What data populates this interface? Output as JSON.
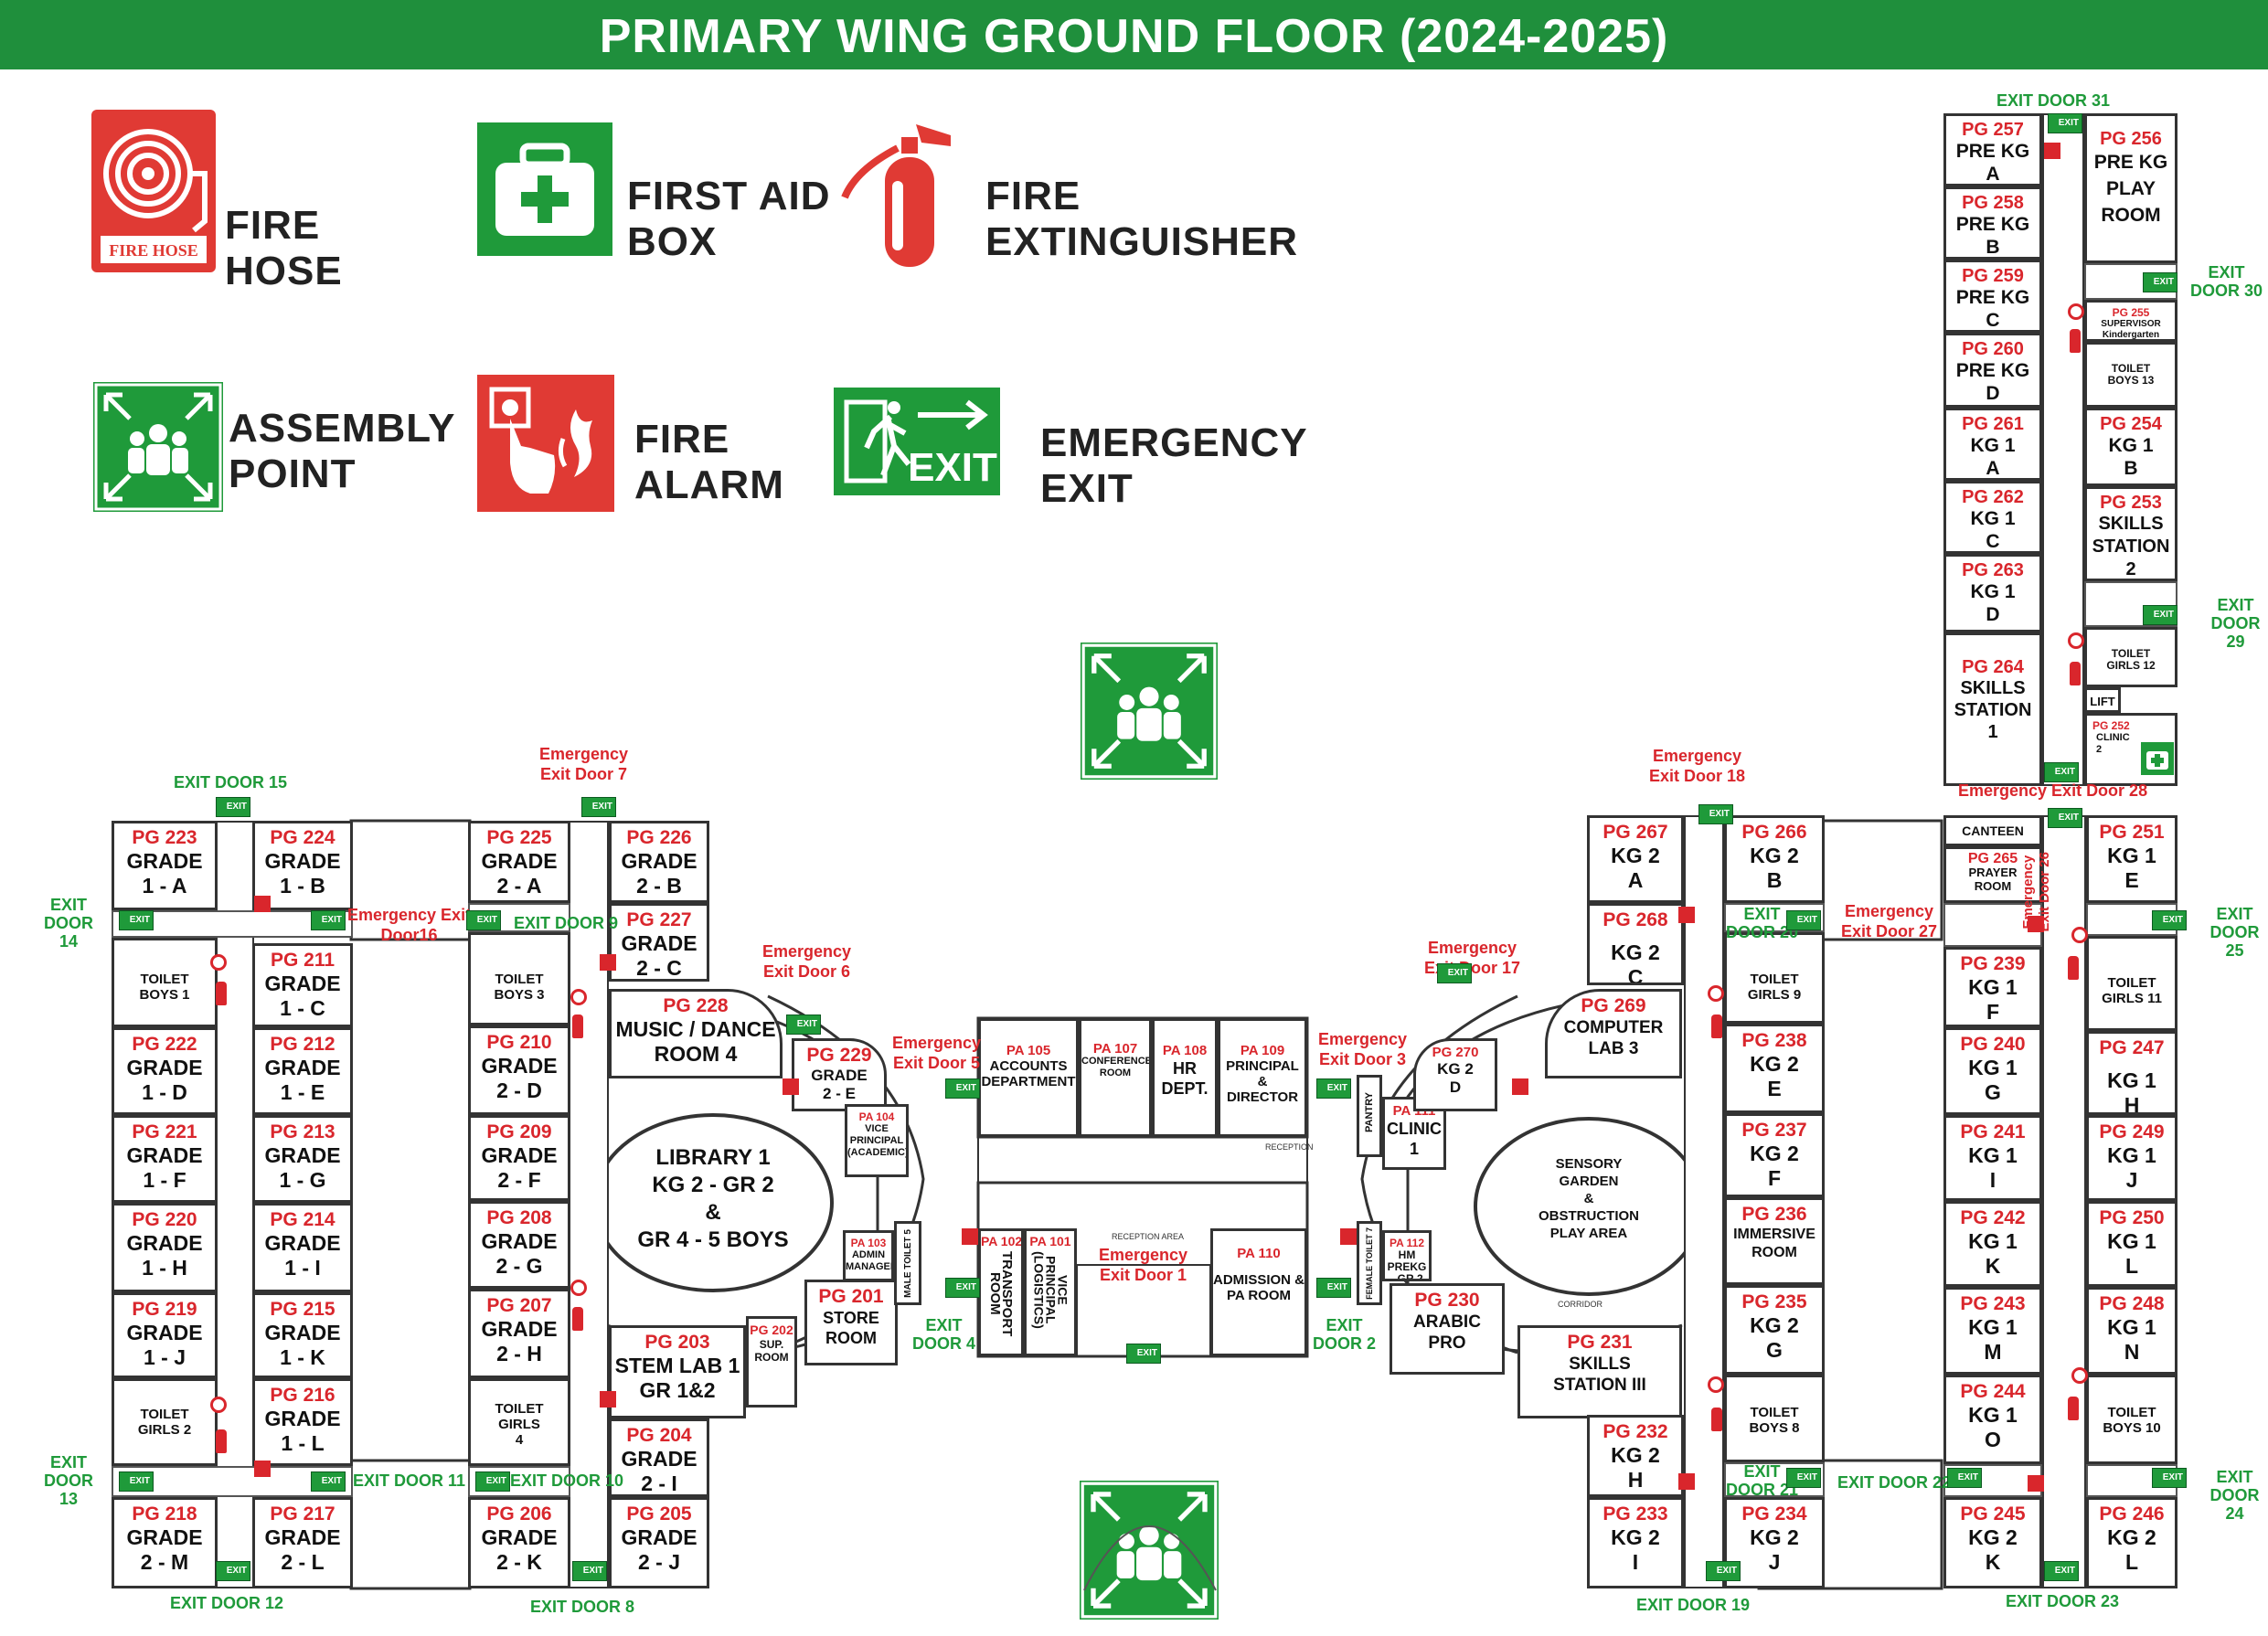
{
  "title": "PRIMARY WING GROUND FLOOR (2024-2025)",
  "colors": {
    "header_green": "#1f8f3c",
    "exit_green": "#1f9a3a",
    "safety_red": "#d9262c"
  },
  "legend": {
    "fire_hose": {
      "icon_text": "FIRE HOSE",
      "line1": "FIRE",
      "line2": "HOSE"
    },
    "first_aid": {
      "line1": "FIRST AID",
      "line2": "BOX"
    },
    "extinguisher": {
      "line1": "FIRE",
      "line2": "EXTINGUISHER"
    },
    "assembly": {
      "line1": "ASSEMBLY",
      "line2": "POINT"
    },
    "alarm": {
      "line1": "FIRE",
      "line2": "ALARM"
    },
    "emergency_exit": {
      "icon_text": "EXIT",
      "line1": "EMERGENCY",
      "line2": "EXIT"
    }
  },
  "exit_sign_text": "EXIT",
  "rooms": {
    "pg223": {
      "code": "PG 223",
      "name": "GRADE\n1 - A"
    },
    "pg224": {
      "code": "PG 224",
      "name": "GRADE\n1 - B"
    },
    "toilet_boys1": {
      "code": "",
      "name": "TOILET\nBOYS 1"
    },
    "pg211": {
      "code": "PG 211",
      "name": "GRADE\n1 - C"
    },
    "pg222": {
      "code": "PG 222",
      "name": "GRADE\n1 - D"
    },
    "pg212": {
      "code": "PG 212",
      "name": "GRADE\n1 - E"
    },
    "pg221": {
      "code": "PG 221",
      "name": "GRADE\n1 - F"
    },
    "pg213": {
      "code": "PG 213",
      "name": "GRADE\n1 - G"
    },
    "pg220": {
      "code": "PG 220",
      "name": "GRADE\n1 - H"
    },
    "pg214": {
      "code": "PG 214",
      "name": "GRADE\n1 - I"
    },
    "pg219": {
      "code": "PG 219",
      "name": "GRADE\n1 - J"
    },
    "pg215": {
      "code": "PG 215",
      "name": "GRADE\n1 - K"
    },
    "toilet_girls2": {
      "code": "",
      "name": "TOILET\nGIRLS 2"
    },
    "pg216": {
      "code": "PG 216",
      "name": "GRADE\n1 - L"
    },
    "pg218": {
      "code": "PG 218",
      "name": "GRADE\n2 - M"
    },
    "pg217": {
      "code": "PG 217",
      "name": "GRADE\n2 - L"
    },
    "pg225": {
      "code": "PG 225",
      "name": "GRADE\n2 - A"
    },
    "pg226": {
      "code": "PG 226",
      "name": "GRADE\n2 - B"
    },
    "pg227": {
      "code": "PG 227",
      "name": "GRADE\n2 - C"
    },
    "toilet_boys3": {
      "code": "",
      "name": "TOILET\nBOYS 3"
    },
    "pg228": {
      "code": "PG 228",
      "name": "MUSIC / DANCE\nROOM 4"
    },
    "pg210": {
      "code": "PG 210",
      "name": "GRADE\n2 - D"
    },
    "pg209": {
      "code": "PG 209",
      "name": "GRADE\n2 - F"
    },
    "pg208": {
      "code": "PG 208",
      "name": "GRADE\n2 - G"
    },
    "pg207": {
      "code": "PG 207",
      "name": "GRADE\n2 - H"
    },
    "toilet_girls4": {
      "code": "",
      "name": "TOILET\nGIRLS\n4"
    },
    "pg203": {
      "code": "PG 203",
      "name": "STEM LAB 1\nGR 1&2"
    },
    "pg202": {
      "code": "PG 202",
      "name": "SUP. ROOM"
    },
    "pg204": {
      "code": "PG 204",
      "name": "GRADE\n2 - I"
    },
    "pg206": {
      "code": "PG 206",
      "name": "GRADE\n2 - K"
    },
    "pg205": {
      "code": "PG 205",
      "name": "GRADE\n2 - J"
    },
    "pg229": {
      "code": "PG 229",
      "name": "GRADE\n2 - E"
    },
    "pa104": {
      "code": "PA 104",
      "name": "VICE\nPRINCIPAL\n(ACADEMIC)"
    },
    "pg201": {
      "code": "PG 201",
      "name": "STORE\nROOM"
    },
    "pa103": {
      "code": "PA 103",
      "name": "ADMIN\nMANAGER"
    },
    "male_toilet5": {
      "code": "",
      "name": "MALE TOILET 5"
    },
    "pa105": {
      "code": "PA 105",
      "name": "ACCOUNTS\nDEPARTMENT"
    },
    "pa107": {
      "code": "PA 107",
      "name": "CONFERENCE\nROOM"
    },
    "pa108": {
      "code": "PA 108",
      "name": "HR\nDEPT."
    },
    "pa109": {
      "code": "PA 109",
      "name": "PRINCIPAL &\nDIRECTOR"
    },
    "pa102": {
      "code": "PA 102",
      "name": "TRANSPORT\nROOM"
    },
    "pa101": {
      "code": "PA 101",
      "name": "VICE\nPRINCIPAL\n(LOGISTICS)"
    },
    "pa110": {
      "code": "PA 110",
      "name": "ADMISSION &\nPA ROOM"
    },
    "pantry": {
      "code": "",
      "name": "PANTRY"
    },
    "pa111": {
      "code": "PA 111",
      "name": "CLINIC\n1"
    },
    "pa112": {
      "code": "PA 112",
      "name": "HM\nPREKG - GR 2"
    },
    "female_toilet7": {
      "code": "",
      "name": "FEMALE TOILET 7"
    },
    "pg270": {
      "code": "PG 270",
      "name": "KG 2\nD"
    },
    "pg269": {
      "code": "PG 269",
      "name": "COMPUTER\nLAB 3"
    },
    "pg230": {
      "code": "PG 230",
      "name": "ARABIC\nPRO"
    },
    "pg231": {
      "code": "PG 231",
      "name": "SKILLS\nSTATION III"
    },
    "pg267": {
      "code": "PG 267",
      "name": "KG 2\nA"
    },
    "pg266": {
      "code": "PG 266",
      "name": "KG 2\nB"
    },
    "pg268": {
      "code": "PG 268",
      "name": "KG 2\nC"
    },
    "toilet_girls9": {
      "code": "",
      "name": "TOILET\nGIRLS 9"
    },
    "pg238": {
      "code": "PG 238",
      "name": "KG 2\nE"
    },
    "pg237": {
      "code": "PG 237",
      "name": "KG 2\nF"
    },
    "pg236": {
      "code": "PG 236",
      "name": "IMMERSIVE\nROOM"
    },
    "pg235": {
      "code": "PG 235",
      "name": "KG 2\nG"
    },
    "toilet_boys8": {
      "code": "",
      "name": "TOILET\nBOYS 8"
    },
    "pg232": {
      "code": "PG 232",
      "name": "KG 2\nH"
    },
    "pg233": {
      "code": "PG 233",
      "name": "KG 2\nI"
    },
    "pg234": {
      "code": "PG 234",
      "name": "KG 2\nJ"
    },
    "canteen": {
      "code": "",
      "name": "CANTEEN"
    },
    "pg265": {
      "code": "PG 265",
      "name": "PRAYER\nROOM"
    },
    "pg251": {
      "code": "PG 251",
      "name": "KG 1\nE"
    },
    "pg239": {
      "code": "PG 239",
      "name": "KG 1\nF"
    },
    "toilet_girls11": {
      "code": "",
      "name": "TOILET\nGIRLS 11"
    },
    "pg240": {
      "code": "PG 240",
      "name": "KG 1\nG"
    },
    "pg247": {
      "code": "PG 247",
      "name": "KG 1\nH"
    },
    "pg241": {
      "code": "PG 241",
      "name": "KG 1\nI"
    },
    "pg249": {
      "code": "PG 249",
      "name": "KG 1\nJ"
    },
    "pg242": {
      "code": "PG 242",
      "name": "KG 1\nK"
    },
    "pg250": {
      "code": "PG 250",
      "name": "KG 1\nL"
    },
    "pg243": {
      "code": "PG 243",
      "name": "KG 1\nM"
    },
    "pg248": {
      "code": "PG 248",
      "name": "KG 1\nN"
    },
    "pg244": {
      "code": "PG 244",
      "name": "KG 1\nO"
    },
    "toilet_boys10": {
      "code": "",
      "name": "TOILET\nBOYS 10"
    },
    "pg245": {
      "code": "PG 245",
      "name": "KG 2\nK"
    },
    "pg246": {
      "code": "PG 246",
      "name": "KG 2\nL"
    },
    "pg257": {
      "code": "PG 257",
      "name": "PRE KG\nA"
    },
    "pg256": {
      "code": "PG 256",
      "name": "PRE KG\nPLAY\nROOM"
    },
    "pg258": {
      "code": "PG 258",
      "name": "PRE KG\nB"
    },
    "pg259": {
      "code": "PG 259",
      "name": "PRE KG\nC"
    },
    "pg255": {
      "code": "PG 255",
      "name": "SUPERVISOR\nKindergarten"
    },
    "toilet_boys13": {
      "code": "",
      "name": "TOILET\nBOYS 13"
    },
    "pg260": {
      "code": "PG 260",
      "name": "PRE KG\nD"
    },
    "pg261": {
      "code": "PG 261",
      "name": "KG 1\nA"
    },
    "pg254": {
      "code": "PG 254",
      "name": "KG 1\nB"
    },
    "pg262": {
      "code": "PG 262",
      "name": "KG 1\nC"
    },
    "pg253": {
      "code": "PG 253",
      "name": "SKILLS\nSTATION\n2"
    },
    "pg263": {
      "code": "PG 263",
      "name": "KG 1\nD"
    },
    "pg264": {
      "code": "PG 264",
      "name": "SKILLS\nSTATION\n1"
    },
    "toilet_girls12": {
      "code": "",
      "name": "TOILET\nGIRLS 12"
    },
    "lift": {
      "code": "",
      "name": "LIFT"
    },
    "pg252": {
      "code": "PG 252",
      "name": "CLINIC\n2"
    }
  },
  "ovals": {
    "library": "LIBRARY 1\nKG 2 - GR 2\n&\nGR 4 - 5 BOYS",
    "sensory": "SENSORY\nGARDEN\n&\nOBSTRUCTION\nPLAY AREA"
  },
  "area_labels": {
    "reception": "RECEPTION",
    "reception_area": "RECEPTION AREA",
    "corridor": "CORRIDOR",
    "vertical_toilet": "MALE\nTOILET"
  },
  "exits": {
    "door15": "EXIT DOOR 15",
    "door14": "EXIT\nDOOR\n14",
    "door13": "EXIT\nDOOR\n13",
    "door12": "EXIT DOOR 12",
    "door11": "EXIT DOOR 11",
    "door10": "EXIT DOOR 10",
    "door9": "EXIT DOOR 9",
    "door8": "EXIT DOOR 8",
    "door4": "EXIT\nDOOR 4",
    "door2": "EXIT\nDOOR 2",
    "door20": "EXIT\nDOOR 20",
    "door21": "EXIT\nDOOR 21",
    "door22": "EXIT DOOR 22",
    "door19": "EXIT DOOR 19",
    "door23": "EXIT DOOR 23",
    "door24": "EXIT\nDOOR 24",
    "door25": "EXIT\nDOOR 25",
    "door29": "EXIT\nDOOR 29",
    "door30": "EXIT\nDOOR 30",
    "door31": "EXIT DOOR 31"
  },
  "emergency": {
    "door7": "Emergency\nExit Door 7",
    "door16": "Emergency Exit\nDoor16",
    "door6": "Emergency\nExit Door 6",
    "door5": "Emergency\nExit Door 5",
    "door3": "Emergency\nExit Door 3",
    "door1": "Emergency\nExit Door 1",
    "door17": "Emergency\nExit Door 17",
    "door18": "Emergency\nExit Door 18",
    "door27": "Emergency\nExit Door 27",
    "door26": "Emergency\nExit Door 26",
    "door28": "Emergency  Exit Door 28"
  }
}
